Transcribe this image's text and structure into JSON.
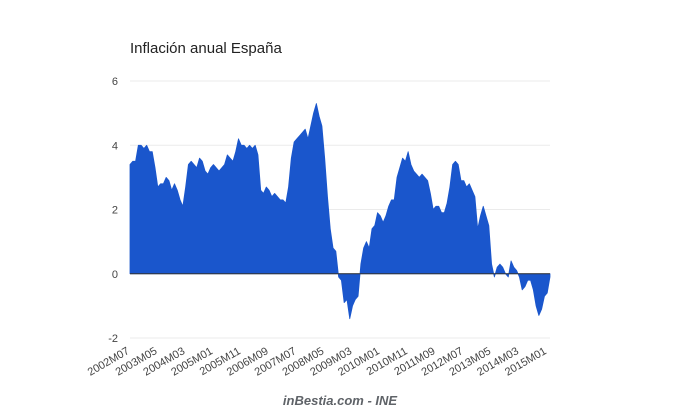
{
  "chart_data": {
    "type": "area",
    "title": "Inflación anual España",
    "source": "inBestia.com - INE",
    "xlabel": "",
    "ylabel": "",
    "ylim": [
      -2,
      6
    ],
    "yticks": [
      6,
      4,
      2,
      0,
      -2
    ],
    "ytick_labels": [
      "6",
      "4",
      "2",
      "0",
      "-2"
    ],
    "grid": true,
    "legend": "none",
    "colors": {
      "area": "#1a56cc",
      "grid": "#ebebeb",
      "zero": "#333333"
    },
    "xtick_labels": [
      "2002M07",
      "2003M05",
      "2004M03",
      "2005M01",
      "2005M11",
      "2006M09",
      "2007M07",
      "2008M05",
      "2009M03",
      "2010M01",
      "2010M11",
      "2011M09",
      "2012M07",
      "2013M05",
      "2014M03",
      "2015M01"
    ],
    "series": [
      {
        "start": "2002M07",
        "frequency": "monthly",
        "values": [
          3.4,
          3.5,
          3.5,
          4.0,
          4.0,
          3.9,
          4.0,
          3.8,
          3.8,
          3.3,
          2.7,
          2.8,
          2.8,
          3.0,
          2.9,
          2.6,
          2.8,
          2.6,
          2.3,
          2.1,
          2.7,
          3.4,
          3.5,
          3.4,
          3.3,
          3.6,
          3.5,
          3.2,
          3.1,
          3.3,
          3.4,
          3.3,
          3.2,
          3.3,
          3.4,
          3.7,
          3.6,
          3.5,
          3.8,
          4.2,
          4.0,
          4.0,
          3.9,
          4.0,
          3.9,
          4.0,
          3.7,
          2.6,
          2.5,
          2.7,
          2.6,
          2.4,
          2.5,
          2.4,
          2.3,
          2.3,
          2.2,
          2.7,
          3.6,
          4.1,
          4.2,
          4.3,
          4.4,
          4.5,
          4.2,
          4.6,
          5.0,
          5.3,
          4.9,
          4.6,
          3.6,
          2.4,
          1.4,
          0.8,
          0.7,
          -0.1,
          -0.2,
          -0.9,
          -0.8,
          -1.4,
          -1.0,
          -0.8,
          -0.7,
          0.3,
          0.8,
          1.0,
          0.8,
          1.4,
          1.5,
          1.9,
          1.8,
          1.6,
          1.8,
          2.1,
          2.3,
          2.3,
          3.0,
          3.3,
          3.6,
          3.5,
          3.8,
          3.4,
          3.2,
          3.1,
          3.0,
          3.1,
          3.0,
          2.9,
          2.5,
          2.0,
          2.1,
          2.1,
          1.9,
          1.9,
          2.2,
          2.7,
          3.4,
          3.5,
          3.4,
          2.9,
          2.9,
          2.7,
          2.8,
          2.6,
          2.4,
          1.4,
          1.8,
          2.1,
          1.8,
          1.5,
          0.3,
          -0.1,
          0.2,
          0.3,
          0.2,
          0.0,
          -0.1,
          0.4,
          0.2,
          0.1,
          -0.1,
          -0.5,
          -0.4,
          -0.2,
          -0.2,
          -0.5,
          -1.0,
          -1.3,
          -1.1,
          -0.7,
          -0.6,
          -0.1
        ]
      }
    ]
  }
}
